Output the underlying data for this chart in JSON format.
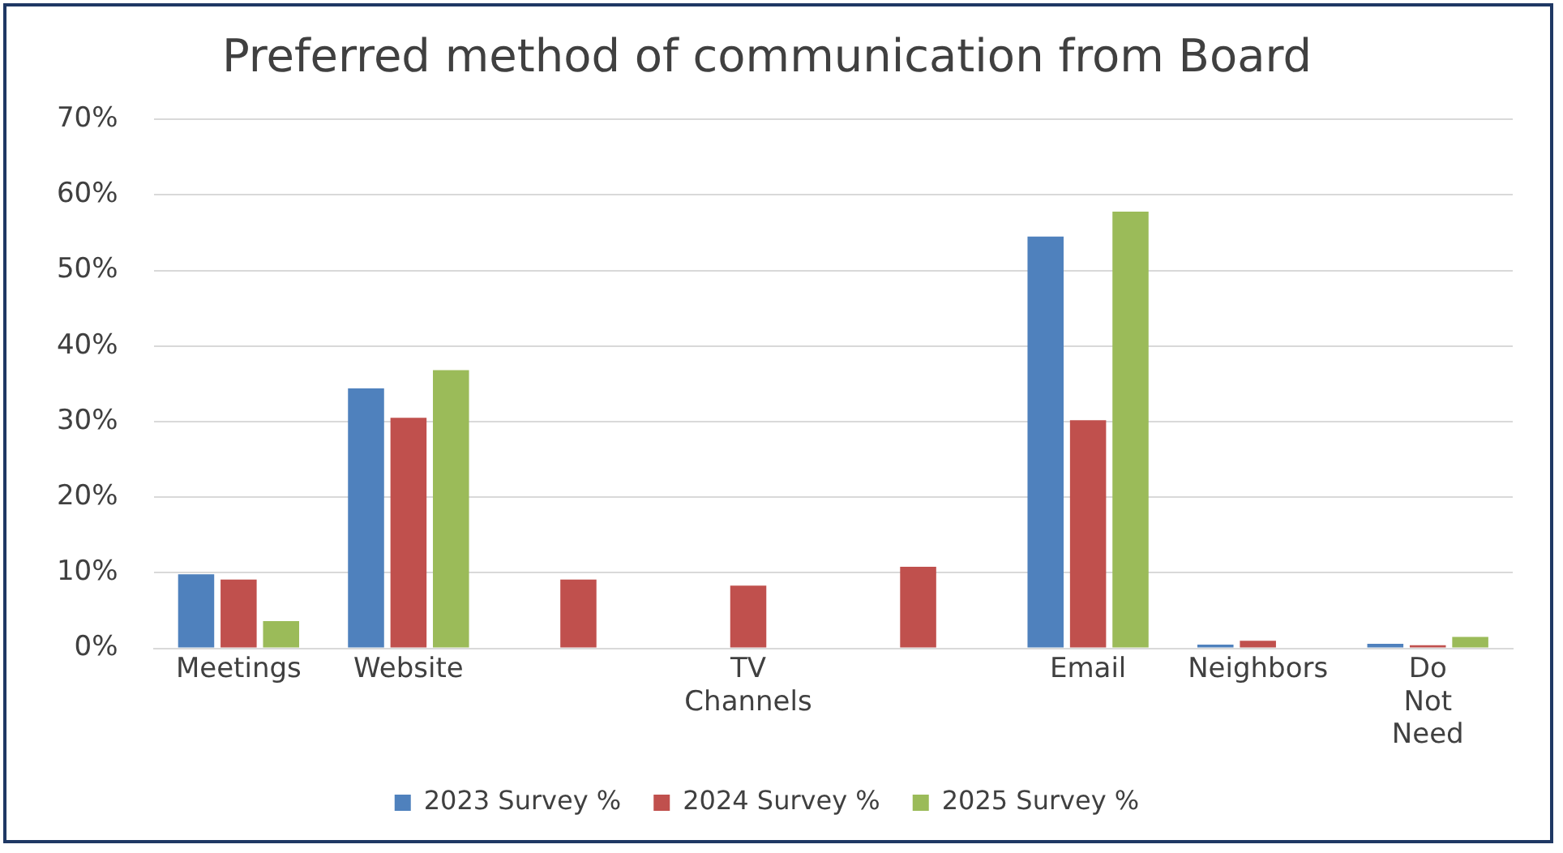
{
  "chart_data": {
    "type": "bar",
    "title": "Preferred method of communication from Board",
    "categories": [
      "Meetings",
      "Website",
      null,
      "TV Channels",
      null,
      "Email",
      "Neighbors",
      "Do Not Need"
    ],
    "series": [
      {
        "name": "2023 Survey %",
        "color": "#4f81bd",
        "values": [
          9.8,
          34.4,
          null,
          null,
          null,
          54.5,
          0.5,
          0.6
        ]
      },
      {
        "name": "2024 Survey %",
        "color": "#c0504d",
        "values": [
          9.1,
          30.5,
          9.1,
          8.3,
          10.8,
          30.2,
          1.0,
          0.4
        ]
      },
      {
        "name": "2025 Survey %",
        "color": "#9bbb59",
        "values": [
          3.6,
          36.8,
          null,
          null,
          null,
          57.8,
          null,
          1.5
        ]
      }
    ],
    "ylim": [
      0,
      70
    ],
    "yticks": [
      {
        "value": 0,
        "label": "0%"
      },
      {
        "value": 10,
        "label": "10%"
      },
      {
        "value": 20,
        "label": "20%"
      },
      {
        "value": 30,
        "label": "30%"
      },
      {
        "value": 40,
        "label": "40%"
      },
      {
        "value": 50,
        "label": "50%"
      },
      {
        "value": 60,
        "label": "60%"
      },
      {
        "value": 70,
        "label": "70%"
      }
    ],
    "grid": "y",
    "legend": "bottom"
  }
}
